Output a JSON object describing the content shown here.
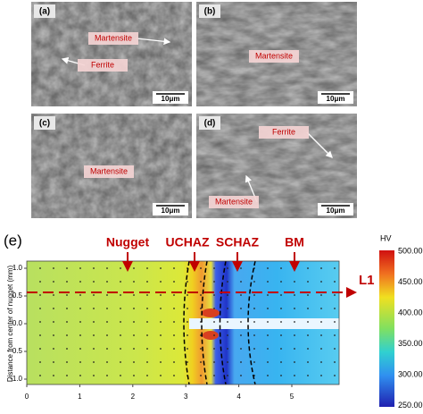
{
  "panels": [
    {
      "label": "(a)",
      "annotations": [
        "Martensite",
        "Ferrite"
      ],
      "scale_bar": "10μm"
    },
    {
      "label": "(b)",
      "annotations": [
        "Martensite"
      ],
      "scale_bar": "10μm"
    },
    {
      "label": "(c)",
      "annotations": [
        "Martensite"
      ],
      "scale_bar": "10μm"
    },
    {
      "label": "(d)",
      "annotations": [
        "Ferrite",
        "Martensite"
      ],
      "scale_bar": "10μm"
    }
  ],
  "map": {
    "label": "(e)",
    "zones": [
      "Nugget",
      "UCHAZ",
      "SCHAZ",
      "BM"
    ],
    "line": "L1",
    "y_axis_label": "Distance from center of nugget (mm)",
    "x_ticks": [
      "0",
      "1",
      "2",
      "3",
      "4",
      "5"
    ],
    "y_ticks": [
      "1.0",
      "0.5",
      "0.0",
      "-0.5",
      "-1.0"
    ],
    "colorbar_unit": "HV",
    "colorbar_ticks": [
      "500.00",
      "450.00",
      "400.00",
      "350.00",
      "300.00",
      "250.00"
    ]
  }
}
